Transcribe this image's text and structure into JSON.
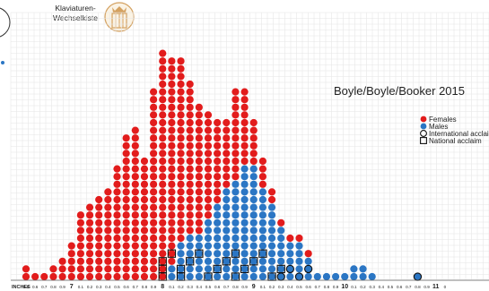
{
  "brand": {
    "line1": "Klaviaturen-",
    "line2": "Wechselkiste"
  },
  "chart_data": {
    "type": "dot-histogram",
    "title": "Boyle/Boyle/Booker 2015",
    "xlabel": "INCHES",
    "x_range": [
      6.4,
      11.0
    ],
    "major_ticks": [
      7,
      8,
      9,
      10,
      11
    ],
    "tick_labels": [
      "0.5",
      "0.6",
      "0.7",
      "0.8",
      "0.9",
      "7",
      "0.1",
      "0.2",
      "0.3",
      "0.4",
      "0.5",
      "0.6",
      "0.7",
      "0.8",
      "0.9",
      "8",
      "0.1",
      "0.2",
      "0.3",
      "0.4",
      "0.5",
      "0.6",
      "0.7",
      "0.8",
      "0.9",
      "9",
      "0.1",
      "0.2",
      "0.3",
      "0.4",
      "0.5",
      "0.6",
      "0.7",
      "0.8",
      "0.9",
      "10",
      "0.1",
      "0.2",
      "0.3",
      "0.4",
      "0.5",
      "0.6",
      "0.7",
      "0.8",
      "0.9",
      "11",
      "0"
    ],
    "bin_width": 0.1,
    "grid": true,
    "legend_position": "right",
    "legend": [
      {
        "label": "Females",
        "marker": "red-circle"
      },
      {
        "label": "Males",
        "marker": "blue-circle"
      },
      {
        "label": "International acclaim",
        "marker": "open-circle"
      },
      {
        "label": "National acclaim",
        "marker": "open-square"
      }
    ],
    "series": [
      {
        "name": "Females",
        "x": [
          6.5,
          6.6,
          6.7,
          6.8,
          6.9,
          7.0,
          7.1,
          7.2,
          7.3,
          7.4,
          7.5,
          7.6,
          7.7,
          7.8,
          7.9,
          8.0,
          8.1,
          8.2,
          8.3,
          8.4,
          8.5,
          8.6,
          8.7,
          8.8,
          8.9,
          9.0,
          9.1,
          9.2,
          9.3,
          9.4,
          9.5,
          9.6,
          9.7,
          9.8,
          9.9,
          10.0,
          10.1,
          10.2,
          10.3,
          10.4,
          10.5,
          10.6,
          10.7,
          10.8,
          10.9
        ],
        "counts": [
          2,
          1,
          1,
          2,
          3,
          5,
          9,
          10,
          11,
          12,
          15,
          19,
          20,
          16,
          25,
          30,
          27,
          24,
          20,
          17,
          14,
          11,
          9,
          12,
          10,
          6,
          4,
          2,
          1,
          1,
          1,
          1,
          0,
          0,
          0,
          0,
          0,
          0,
          0,
          0,
          0,
          0,
          0,
          0,
          0
        ]
      },
      {
        "name": "Males",
        "x": [
          6.5,
          6.6,
          6.7,
          6.8,
          6.9,
          7.0,
          7.1,
          7.2,
          7.3,
          7.4,
          7.5,
          7.6,
          7.7,
          7.8,
          7.9,
          8.0,
          8.1,
          8.2,
          8.3,
          8.4,
          8.5,
          8.6,
          8.7,
          8.8,
          8.9,
          9.0,
          9.1,
          9.2,
          9.3,
          9.4,
          9.5,
          9.6,
          9.7,
          9.8,
          9.9,
          10.0,
          10.1,
          10.2,
          10.3,
          10.4,
          10.5,
          10.6,
          10.7,
          10.8,
          10.9
        ],
        "counts": [
          0,
          0,
          0,
          0,
          0,
          0,
          0,
          0,
          0,
          0,
          0,
          0,
          0,
          0,
          0,
          0,
          2,
          5,
          6,
          6,
          8,
          10,
          12,
          13,
          15,
          15,
          12,
          10,
          7,
          5,
          5,
          3,
          1,
          1,
          1,
          1,
          2,
          2,
          1,
          0,
          0,
          0,
          0,
          1,
          0
        ]
      }
    ]
  }
}
